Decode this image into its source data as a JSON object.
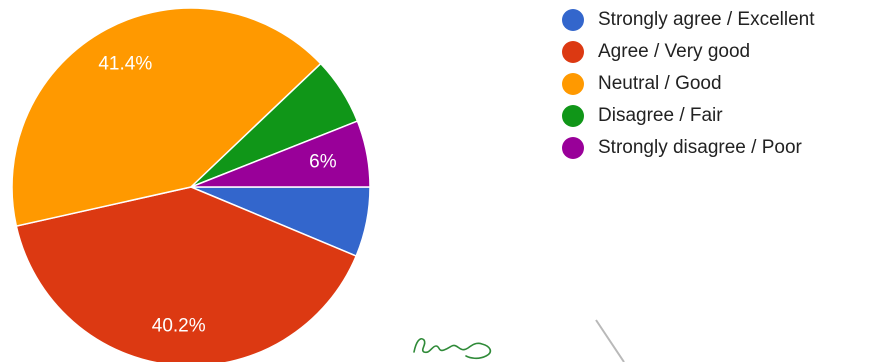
{
  "chart_data": {
    "type": "pie",
    "title": "",
    "series": [
      {
        "name": "Strongly agree / Excellent",
        "value": 6.3,
        "label": "",
        "color": "#3366cc"
      },
      {
        "name": "Agree / Very good",
        "value": 40.2,
        "label": "40.2%",
        "color": "#dc3912"
      },
      {
        "name": "Neutral / Good",
        "value": 41.4,
        "label": "41.4%",
        "color": "#ff9900"
      },
      {
        "name": "Disagree / Fair",
        "value": 6.1,
        "label": "",
        "color": "#109618"
      },
      {
        "name": "Strongly disagree / Poor",
        "value": 6.0,
        "label": "6%",
        "color": "#990099"
      }
    ],
    "legend_position": "right"
  }
}
